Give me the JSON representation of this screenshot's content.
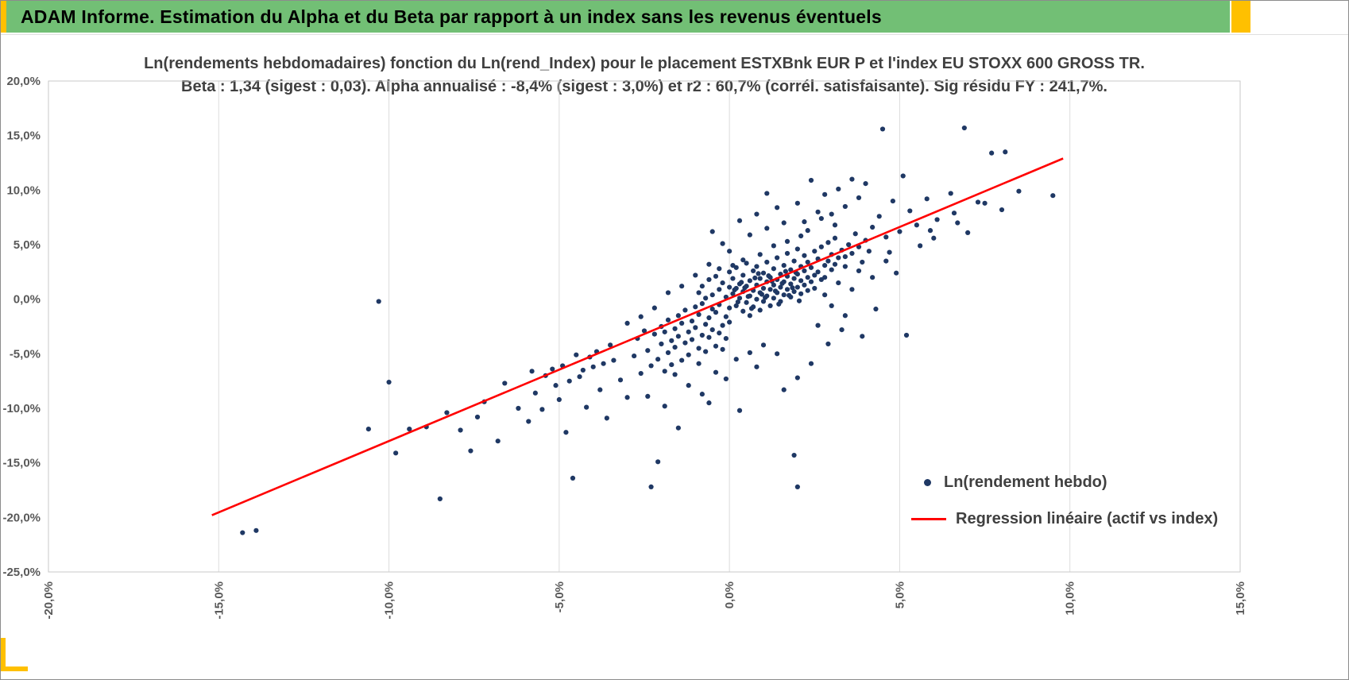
{
  "window": {
    "title": "ADAM Informe. Estimation du Alpha et du Beta par rapport à un index sans les revenus éventuels"
  },
  "colors": {
    "header_bg": "#72bf75",
    "accent_yellow": "#ffc000",
    "point": "#1f3864",
    "regression": "#ff0000",
    "grid": "#dcdcdc",
    "plot_border": "#c9c9c9",
    "axis_text": "#595959",
    "title_text": "#404040"
  },
  "chart_data": {
    "type": "scatter",
    "title_line1": "Ln(rendements hebdomadaires) fonction du Ln(rend_Index) pour le placement ESTXBnk EUR P et l'index EU STOXX 600 GROSS TR.",
    "title_line2": "Beta : 1,34 (sigest : 0,03). Alpha annualisé : -8,4% (sigest : 3,0%) et r2 : 60,7% (corrél. satisfaisante). Sig résidu FY : 241,7%.",
    "stats": {
      "beta": "1,34",
      "beta_sigest": "0,03",
      "alpha_annualise": "-8,4%",
      "alpha_sigest": "3,0%",
      "r2": "60,7%",
      "correlation_note": "corrél. satisfaisante",
      "sig_residu_fy": "241,7%"
    },
    "xlim": [
      -20,
      15
    ],
    "ylim": [
      -25,
      20
    ],
    "x_ticks": [
      {
        "v": -20,
        "label": "-20,0%"
      },
      {
        "v": -15,
        "label": "-15,0%"
      },
      {
        "v": -10,
        "label": "-10,0%"
      },
      {
        "v": -5,
        "label": "-5,0%"
      },
      {
        "v": 0,
        "label": "0,0%"
      },
      {
        "v": 5,
        "label": "5,0%"
      },
      {
        "v": 10,
        "label": "10,0%"
      },
      {
        "v": 15,
        "label": "15,0%"
      }
    ],
    "y_ticks": [
      {
        "v": 20,
        "label": "20,0%"
      },
      {
        "v": 15,
        "label": "15,0%"
      },
      {
        "v": 10,
        "label": "10,0%"
      },
      {
        "v": 5,
        "label": "5,0%"
      },
      {
        "v": 0,
        "label": "0,0%"
      },
      {
        "v": -5,
        "label": "-5,0%"
      },
      {
        "v": -10,
        "label": "-10,0%"
      },
      {
        "v": -15,
        "label": "-15,0%"
      },
      {
        "v": -20,
        "label": "-20,0%"
      },
      {
        "v": -25,
        "label": "-25,0%"
      }
    ],
    "regression": {
      "x1": -15.2,
      "y1": -19.8,
      "x2": 9.8,
      "y2": 12.9
    },
    "legend": [
      {
        "label": "Ln(rendement hebdo)",
        "type": "point"
      },
      {
        "label": "Regression linéaire (actif vs index)",
        "type": "line"
      }
    ],
    "points": [
      [
        -14.3,
        -21.4
      ],
      [
        -13.9,
        -21.2
      ],
      [
        -10.3,
        -0.2
      ],
      [
        -10.6,
        -11.9
      ],
      [
        -10.0,
        -7.6
      ],
      [
        -9.8,
        -14.1
      ],
      [
        -9.4,
        -11.9
      ],
      [
        -8.9,
        -11.7
      ],
      [
        -8.5,
        -18.3
      ],
      [
        -8.3,
        -10.4
      ],
      [
        -7.9,
        -12.0
      ],
      [
        -7.6,
        -13.9
      ],
      [
        -7.4,
        -10.8
      ],
      [
        -7.2,
        -9.4
      ],
      [
        -6.8,
        -13.0
      ],
      [
        -6.6,
        -7.7
      ],
      [
        -6.2,
        -10.0
      ],
      [
        -5.9,
        -11.2
      ],
      [
        -5.7,
        -8.6
      ],
      [
        -5.5,
        -10.1
      ],
      [
        -5.2,
        -6.4
      ],
      [
        -5.0,
        -9.2
      ],
      [
        -4.8,
        -12.2
      ],
      [
        -4.6,
        -16.4
      ],
      [
        -4.4,
        -7.1
      ],
      [
        -4.2,
        -9.9
      ],
      [
        -4.0,
        -6.2
      ],
      [
        -3.8,
        -8.3
      ],
      [
        -3.6,
        -10.9
      ],
      [
        -3.4,
        -5.6
      ],
      [
        -3.2,
        -7.4
      ],
      [
        -3.0,
        -9.0
      ],
      [
        -2.3,
        -17.2
      ],
      [
        -2.1,
        -14.9
      ],
      [
        1.9,
        -14.3
      ],
      [
        2.0,
        -17.2
      ],
      [
        5.2,
        -3.3
      ],
      [
        0.3,
        -10.2
      ],
      [
        -0.6,
        -9.5
      ],
      [
        -1.5,
        -11.8
      ],
      [
        -1.2,
        -7.9
      ],
      [
        -3.5,
        -4.2
      ],
      [
        -3.7,
        -5.9
      ],
      [
        -3.9,
        -4.8
      ],
      [
        -4.1,
        -5.3
      ],
      [
        -4.3,
        -6.5
      ],
      [
        -4.5,
        -5.1
      ],
      [
        -4.7,
        -7.5
      ],
      [
        -4.9,
        -6.1
      ],
      [
        -5.1,
        -7.9
      ],
      [
        -5.4,
        -7.0
      ],
      [
        -5.8,
        -6.6
      ],
      [
        -2.8,
        -5.2
      ],
      [
        -2.7,
        -3.6
      ],
      [
        -2.6,
        -6.8
      ],
      [
        -2.5,
        -2.9
      ],
      [
        -2.4,
        -4.7
      ],
      [
        -2.3,
        -6.1
      ],
      [
        -2.2,
        -3.2
      ],
      [
        -2.1,
        -5.5
      ],
      [
        -2.0,
        -2.5
      ],
      [
        -2.0,
        -4.1
      ],
      [
        -1.9,
        -6.6
      ],
      [
        -1.9,
        -3.0
      ],
      [
        -1.8,
        -4.9
      ],
      [
        -1.8,
        -1.9
      ],
      [
        -1.7,
        -3.8
      ],
      [
        -1.7,
        -6.0
      ],
      [
        -1.6,
        -2.7
      ],
      [
        -1.6,
        -4.4
      ],
      [
        -1.5,
        -1.5
      ],
      [
        -1.5,
        -3.4
      ],
      [
        -1.4,
        -5.6
      ],
      [
        -1.4,
        -2.2
      ],
      [
        -1.3,
        -4.0
      ],
      [
        -1.3,
        -1.0
      ],
      [
        -1.2,
        -3.0
      ],
      [
        -1.2,
        -5.1
      ],
      [
        -1.1,
        -2.0
      ],
      [
        -1.1,
        -3.7
      ],
      [
        -1.0,
        -0.7
      ],
      [
        -1.0,
        -2.6
      ],
      [
        -0.9,
        -4.5
      ],
      [
        -0.9,
        -1.4
      ],
      [
        -0.8,
        -3.3
      ],
      [
        -0.8,
        -0.4
      ],
      [
        -0.7,
        -2.3
      ],
      [
        -0.7,
        -4.8
      ],
      [
        -0.6,
        -1.7
      ],
      [
        -0.6,
        -3.5
      ],
      [
        -0.5,
        -0.9
      ],
      [
        -0.5,
        -2.8
      ],
      [
        -0.4,
        -4.3
      ],
      [
        -0.4,
        -1.2
      ],
      [
        -0.3,
        -3.1
      ],
      [
        -0.3,
        -0.5
      ],
      [
        -0.2,
        -2.4
      ],
      [
        -0.2,
        -4.6
      ],
      [
        -0.1,
        -1.6
      ],
      [
        -0.1,
        -3.6
      ],
      [
        0.0,
        -0.8
      ],
      [
        0.0,
        -2.1
      ],
      [
        0.2,
        -5.5
      ],
      [
        -0.4,
        -6.7
      ],
      [
        0.6,
        -4.9
      ],
      [
        -0.9,
        -5.9
      ],
      [
        1.0,
        -4.2
      ],
      [
        -0.1,
        -7.3
      ],
      [
        0.8,
        -6.2
      ],
      [
        1.4,
        -5.0
      ],
      [
        -1.6,
        -6.9
      ],
      [
        2.0,
        -7.2
      ],
      [
        2.4,
        -5.9
      ],
      [
        2.9,
        -4.1
      ],
      [
        3.3,
        -2.8
      ],
      [
        3.9,
        -3.4
      ],
      [
        -0.9,
        0.6
      ],
      [
        -0.8,
        1.2
      ],
      [
        -0.7,
        0.1
      ],
      [
        -0.6,
        1.8
      ],
      [
        -0.5,
        0.4
      ],
      [
        -0.4,
        2.1
      ],
      [
        -0.3,
        0.9
      ],
      [
        -0.2,
        1.5
      ],
      [
        -0.1,
        0.2
      ],
      [
        0.0,
        1.1
      ],
      [
        0.0,
        2.5
      ],
      [
        0.1,
        0.5
      ],
      [
        0.1,
        1.9
      ],
      [
        0.2,
        -0.6
      ],
      [
        0.2,
        1.0
      ],
      [
        0.2,
        2.9
      ],
      [
        0.3,
        0.1
      ],
      [
        0.3,
        1.4
      ],
      [
        0.4,
        -1.1
      ],
      [
        0.4,
        0.7
      ],
      [
        0.4,
        2.2
      ],
      [
        0.5,
        -0.3
      ],
      [
        0.5,
        1.2
      ],
      [
        0.5,
        3.3
      ],
      [
        0.6,
        0.3
      ],
      [
        0.6,
        1.7
      ],
      [
        0.6,
        -1.5
      ],
      [
        0.7,
        0.8
      ],
      [
        0.7,
        2.6
      ],
      [
        0.7,
        -0.7
      ],
      [
        0.8,
        1.3
      ],
      [
        0.8,
        0.0
      ],
      [
        0.8,
        3.0
      ],
      [
        0.9,
        0.6
      ],
      [
        0.9,
        1.9
      ],
      [
        0.9,
        -1.0
      ],
      [
        1.0,
        1.0
      ],
      [
        1.0,
        2.4
      ],
      [
        1.0,
        -0.2
      ],
      [
        1.1,
        1.6
      ],
      [
        1.1,
        0.3
      ],
      [
        1.1,
        3.4
      ],
      [
        1.2,
        0.9
      ],
      [
        1.2,
        2.0
      ],
      [
        1.2,
        -0.6
      ],
      [
        1.3,
        1.3
      ],
      [
        1.3,
        2.8
      ],
      [
        1.3,
        0.1
      ],
      [
        1.4,
        1.8
      ],
      [
        1.4,
        0.6
      ],
      [
        1.4,
        3.8
      ],
      [
        1.5,
        1.1
      ],
      [
        1.5,
        2.3
      ],
      [
        1.5,
        -0.2
      ],
      [
        1.6,
        1.6
      ],
      [
        1.6,
        3.1
      ],
      [
        1.6,
        0.4
      ],
      [
        1.7,
        2.1
      ],
      [
        1.7,
        0.9
      ],
      [
        1.7,
        4.2
      ],
      [
        1.8,
        1.4
      ],
      [
        1.8,
        2.7
      ],
      [
        1.8,
        0.2
      ],
      [
        1.9,
        1.9
      ],
      [
        1.9,
        3.5
      ],
      [
        1.9,
        0.7
      ],
      [
        2.0,
        2.3
      ],
      [
        2.0,
        1.1
      ],
      [
        2.0,
        4.6
      ],
      [
        2.1,
        1.7
      ],
      [
        2.1,
        3.0
      ],
      [
        2.1,
        0.5
      ],
      [
        2.2,
        2.6
      ],
      [
        2.2,
        1.3
      ],
      [
        2.2,
        4.0
      ],
      [
        2.3,
        2.0
      ],
      [
        2.3,
        3.4
      ],
      [
        2.3,
        0.8
      ],
      [
        2.4,
        2.9
      ],
      [
        2.4,
        1.6
      ],
      [
        2.5,
        4.4
      ],
      [
        2.5,
        2.2
      ],
      [
        2.5,
        1.0
      ],
      [
        2.6,
        3.7
      ],
      [
        2.6,
        2.5
      ],
      [
        2.7,
        1.8
      ],
      [
        2.7,
        4.8
      ],
      [
        2.8,
        3.1
      ],
      [
        2.8,
        2.0
      ],
      [
        2.9,
        5.2
      ],
      [
        2.9,
        3.5
      ],
      [
        3.0,
        2.7
      ],
      [
        3.0,
        4.1
      ],
      [
        3.1,
        3.2
      ],
      [
        3.1,
        5.6
      ],
      [
        3.2,
        3.8
      ],
      [
        3.3,
        4.5
      ],
      [
        3.4,
        3.0
      ],
      [
        3.5,
        5.0
      ],
      [
        3.6,
        4.2
      ],
      [
        3.7,
        6.0
      ],
      [
        3.8,
        4.8
      ],
      [
        4.0,
        5.4
      ],
      [
        4.1,
        4.4
      ],
      [
        0.15,
        0.85
      ],
      [
        0.35,
        1.55
      ],
      [
        0.55,
        0.25
      ],
      [
        0.75,
        1.95
      ],
      [
        0.95,
        0.45
      ],
      [
        1.15,
        2.15
      ],
      [
        1.35,
        0.75
      ],
      [
        1.55,
        1.45
      ],
      [
        1.75,
        0.35
      ],
      [
        1.95,
        2.45
      ],
      [
        0.25,
        -0.25
      ],
      [
        0.45,
        1.05
      ],
      [
        0.65,
        -0.85
      ],
      [
        0.85,
        2.35
      ],
      [
        1.05,
        0.15
      ],
      [
        1.25,
        1.65
      ],
      [
        1.45,
        -0.45
      ],
      [
        1.65,
        2.55
      ],
      [
        1.85,
        1.05
      ],
      [
        2.05,
        -0.15
      ],
      [
        0.1,
        3.1
      ],
      [
        0.4,
        3.6
      ],
      [
        0.9,
        4.1
      ],
      [
        1.3,
        4.9
      ],
      [
        1.7,
        5.3
      ],
      [
        2.1,
        5.8
      ],
      [
        0.0,
        4.4
      ],
      [
        -0.3,
        2.8
      ],
      [
        -0.6,
        3.2
      ],
      [
        -1.0,
        2.2
      ],
      [
        -1.4,
        1.2
      ],
      [
        -1.8,
        0.6
      ],
      [
        -2.2,
        -0.8
      ],
      [
        -2.6,
        -1.6
      ],
      [
        -3.0,
        -2.2
      ],
      [
        -0.2,
        5.1
      ],
      [
        0.6,
        5.9
      ],
      [
        1.1,
        6.5
      ],
      [
        1.6,
        7.0
      ],
      [
        2.3,
        6.3
      ],
      [
        2.7,
        7.4
      ],
      [
        3.1,
        6.8
      ],
      [
        0.8,
        7.8
      ],
      [
        1.4,
        8.4
      ],
      [
        -0.5,
        6.2
      ],
      [
        2.6,
        -2.4
      ],
      [
        3.4,
        -1.5
      ],
      [
        3.0,
        -0.6
      ],
      [
        3.6,
        0.9
      ],
      [
        4.2,
        2.0
      ],
      [
        4.6,
        3.5
      ],
      [
        3.8,
        2.6
      ],
      [
        3.2,
        1.5
      ],
      [
        2.8,
        0.4
      ],
      [
        3.4,
        3.9
      ],
      [
        3.9,
        3.4
      ],
      [
        4.5,
        15.6
      ],
      [
        6.9,
        15.7
      ],
      [
        7.7,
        13.4
      ],
      [
        8.1,
        13.5
      ],
      [
        9.5,
        9.5
      ],
      [
        7.3,
        8.9
      ],
      [
        6.5,
        9.7
      ],
      [
        6.1,
        7.3
      ],
      [
        5.8,
        9.2
      ],
      [
        5.5,
        6.8
      ],
      [
        5.3,
        8.1
      ],
      [
        5.0,
        6.2
      ],
      [
        4.8,
        9.0
      ],
      [
        4.6,
        5.7
      ],
      [
        4.4,
        7.6
      ],
      [
        4.2,
        6.6
      ],
      [
        5.1,
        11.3
      ],
      [
        4.0,
        10.6
      ],
      [
        3.8,
        9.3
      ],
      [
        3.6,
        11.0
      ],
      [
        3.4,
        8.5
      ],
      [
        3.2,
        10.1
      ],
      [
        3.0,
        7.8
      ],
      [
        2.8,
        9.6
      ],
      [
        2.6,
        8.0
      ],
      [
        2.4,
        10.9
      ],
      [
        2.2,
        7.1
      ],
      [
        2.0,
        8.8
      ],
      [
        4.3,
        -0.9
      ],
      [
        4.9,
        2.4
      ],
      [
        5.6,
        4.9
      ],
      [
        6.0,
        5.6
      ],
      [
        4.7,
        4.3
      ],
      [
        5.9,
        6.3
      ],
      [
        6.7,
        7.0
      ],
      [
        7.0,
        6.1
      ],
      [
        6.6,
        7.9
      ],
      [
        7.5,
        8.8
      ],
      [
        8.0,
        8.2
      ],
      [
        8.5,
        9.9
      ],
      [
        1.1,
        9.7
      ],
      [
        0.3,
        7.2
      ],
      [
        -0.8,
        -8.7
      ],
      [
        1.6,
        -8.3
      ],
      [
        -1.9,
        -9.8
      ],
      [
        -2.4,
        -8.9
      ]
    ]
  }
}
